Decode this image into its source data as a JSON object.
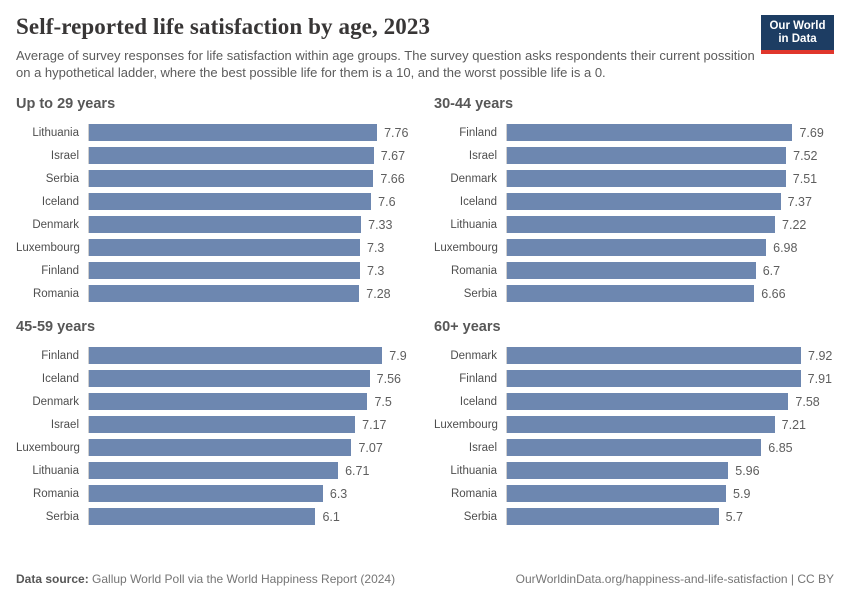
{
  "header": {
    "title": "Self-reported life satisfaction by age, 2023",
    "subtitle": "Average of survey responses for life satisfaction within age groups. The survey question asks respondents their current possition on a hypothetical ladder, where the best possible life for them is a 10, and the worst possible life is a 0.",
    "logo": {
      "line1": "Our World",
      "line2": "in Data"
    }
  },
  "chart_data": {
    "type": "bar",
    "orientation": "horizontal",
    "title": "Self-reported life satisfaction by age, 2023",
    "xlim": [
      0,
      8
    ],
    "grid": false,
    "value_labels_shown": true,
    "panels": [
      {
        "title": "Up to 29 years",
        "categories": [
          "Lithuania",
          "Israel",
          "Serbia",
          "Iceland",
          "Denmark",
          "Luxembourg",
          "Finland",
          "Romania"
        ],
        "values": [
          7.76,
          7.67,
          7.66,
          7.6,
          7.33,
          7.3,
          7.3,
          7.28
        ],
        "value_labels": [
          "7.76",
          "7.67",
          "7.66",
          "7.6",
          "7.33",
          "7.3",
          "7.3",
          "7.28"
        ]
      },
      {
        "title": "30-44 years",
        "categories": [
          "Finland",
          "Israel",
          "Denmark",
          "Iceland",
          "Lithuania",
          "Luxembourg",
          "Romania",
          "Serbia"
        ],
        "values": [
          7.69,
          7.52,
          7.51,
          7.37,
          7.22,
          6.98,
          6.7,
          6.66
        ],
        "value_labels": [
          "7.69",
          "7.52",
          "7.51",
          "7.37",
          "7.22",
          "6.98",
          "6.7",
          "6.66"
        ]
      },
      {
        "title": "45-59 years",
        "categories": [
          "Finland",
          "Iceland",
          "Denmark",
          "Israel",
          "Luxembourg",
          "Lithuania",
          "Romania",
          "Serbia"
        ],
        "values": [
          7.9,
          7.56,
          7.5,
          7.17,
          7.07,
          6.71,
          6.3,
          6.1
        ],
        "value_labels": [
          "7.9",
          "7.56",
          "7.5",
          "7.17",
          "7.07",
          "6.71",
          "6.3",
          "6.1"
        ]
      },
      {
        "title": "60+ years",
        "categories": [
          "Denmark",
          "Finland",
          "Iceland",
          "Luxembourg",
          "Israel",
          "Lithuania",
          "Romania",
          "Serbia"
        ],
        "values": [
          7.92,
          7.91,
          7.58,
          7.21,
          6.85,
          5.96,
          5.9,
          5.7
        ],
        "value_labels": [
          "7.92",
          "7.91",
          "7.58",
          "7.21",
          "6.85",
          "5.96",
          "5.9",
          "5.7"
        ]
      }
    ]
  },
  "footer": {
    "source_label": "Data source:",
    "source_text": "Gallup World Poll via the World Happiness Report (2024)",
    "right_text": "OurWorldinData.org/happiness-and-life-satisfaction | CC BY"
  },
  "colors": {
    "bar": "#6d87b0",
    "axis_line": "#cfcfcf",
    "logo_navy": "#1d3d63",
    "logo_red": "#e0362c"
  }
}
